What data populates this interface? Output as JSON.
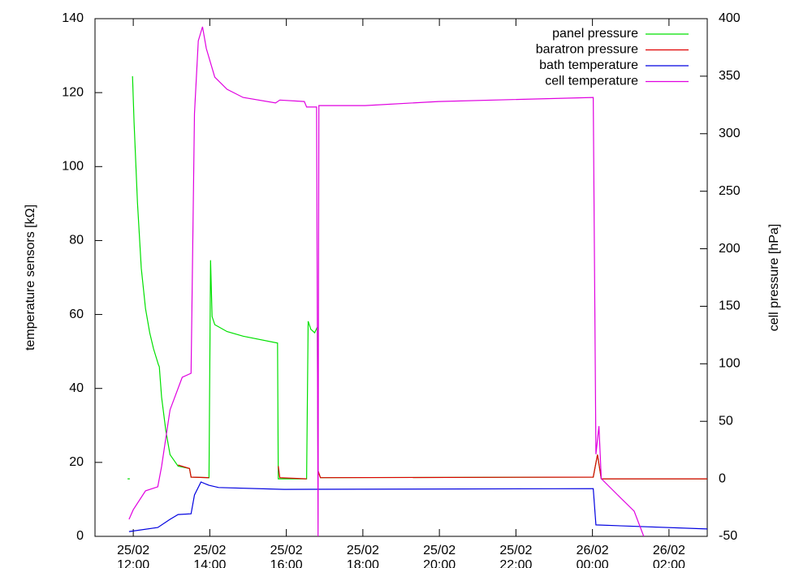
{
  "chart_data": {
    "type": "line",
    "ylabel": "temperature sensors [kΩ]",
    "y2label": "cell pressure [hPa]",
    "xlim": [
      11,
      27
    ],
    "xticks": [
      {
        "value": 12,
        "label": "25/02 12:00"
      },
      {
        "value": 14,
        "label": "25/02 14:00"
      },
      {
        "value": 16,
        "label": "25/02 16:00"
      },
      {
        "value": 18,
        "label": "25/02 18:00"
      },
      {
        "value": 20,
        "label": "25/02 20:00"
      },
      {
        "value": 22,
        "label": "25/02 22:00"
      },
      {
        "value": 24,
        "label": "26/02 00:00"
      },
      {
        "value": 26,
        "label": "26/02 02:00"
      }
    ],
    "ylim": [
      0,
      140
    ],
    "yticks": [
      0,
      20,
      40,
      60,
      80,
      100,
      120,
      140
    ],
    "y2lim": [
      -50,
      400
    ],
    "y2ticks": [
      -50,
      0,
      50,
      100,
      150,
      200,
      250,
      300,
      350,
      400
    ],
    "legend": "top-right",
    "series": [
      {
        "name": "panel pressure",
        "color": "#00e000",
        "axis": "y2",
        "x": [
          11.85,
          11.91,
          11.94,
          11.98,
          12.02,
          12.11,
          12.21,
          12.32,
          12.43,
          12.53,
          12.66,
          12.68,
          12.74,
          12.85,
          12.96,
          13.17,
          13.47,
          13.51,
          13.98,
          14.02,
          14.06,
          14.13,
          14.45,
          14.87,
          15.77,
          15.79,
          16.53,
          16.57,
          16.64,
          16.74,
          16.81,
          16.83,
          16.89,
          24.02,
          24.13,
          24.23,
          27
        ],
        "values": [
          0,
          0,
          null,
          350,
          310,
          240,
          183,
          148,
          127,
          113,
          99,
          97.5,
          71,
          42,
          21,
          11,
          9,
          1.5,
          1,
          190,
          141,
          134,
          128,
          124,
          118,
          0,
          0,
          137,
          130,
          127,
          132,
          7,
          1,
          1.5,
          21,
          0,
          0
        ]
      },
      {
        "name": "baratron pressure",
        "color": "#e00000",
        "axis": "y2",
        "x": [
          13.17,
          13.47,
          13.51,
          13.98,
          14.5,
          15.79,
          15.83,
          16.53,
          16.7,
          16.83,
          16.89,
          24.02,
          24.13,
          24.23,
          27
        ],
        "values": [
          12,
          9,
          1.5,
          1,
          null,
          11,
          1,
          0,
          null,
          7,
          1,
          1.5,
          21,
          0,
          0
        ]
      },
      {
        "name": "bath temperature",
        "color": "#0000e0",
        "x": [
          11.89,
          12.64,
          12.96,
          13.17,
          13.51,
          13.6,
          13.77,
          13.98,
          14.23,
          15.94,
          24.02,
          24.09,
          27
        ],
        "values": [
          1.3,
          2.4,
          4.6,
          5.9,
          6.1,
          11.2,
          14.7,
          13.8,
          13.2,
          12.7,
          12.9,
          3.1,
          2.0
        ]
      },
      {
        "name": "cell temperature",
        "color": "#e000e0",
        "x": [
          11.89,
          12,
          12.32,
          12.64,
          12.74,
          12.96,
          13.28,
          13.51,
          13.6,
          13.7,
          13.81,
          13.91,
          14.13,
          14.45,
          14.87,
          15.72,
          15.83,
          16.47,
          16.53,
          16.79,
          16.83,
          16.85,
          18.06,
          19.98,
          24.02,
          24.09,
          24.17,
          24.23,
          24.66,
          25.09,
          25.34
        ],
        "values": [
          4.6,
          7.2,
          12.3,
          13.4,
          18.9,
          34.2,
          43,
          44.1,
          114.3,
          134,
          137.8,
          131.9,
          124.2,
          120.9,
          118.7,
          117.2,
          118,
          117.6,
          116.1,
          116.1,
          0,
          116.5,
          116.5,
          117.6,
          118.7,
          22.2,
          29.8,
          15.6,
          11.2,
          6.8,
          0
        ]
      }
    ]
  }
}
